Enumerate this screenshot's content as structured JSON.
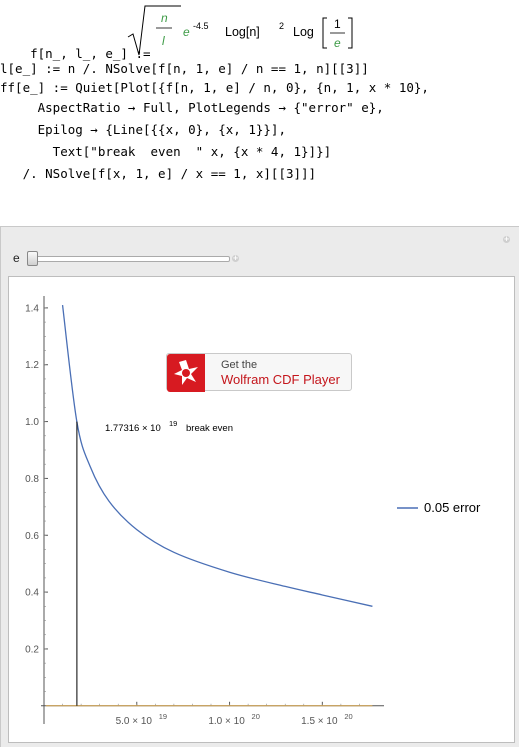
{
  "notebook": {
    "line1": {
      "lhs": "f[n_, l_, e_] := ",
      "sqrt_num": "n",
      "sqrt_den": "l",
      "exp_base": "e",
      "exp_pow": "-4.5",
      "log1": "Log[n]",
      "log1_pow": "2",
      "log2_head": "Log",
      "frac_num": "1",
      "frac_den": "e"
    },
    "line2": "l[e_] := n /. NSolve[f[n, 1, e] / n == 1, n][[3]]",
    "line3": "ff[e_] := Quiet[Plot[{f[n, 1, e] / n, 0}, {n, 1, x * 10},",
    "line4": "     AspectRatio → Full, PlotLegends → {\"error\" e},",
    "line5": "     Epilog → {Line[{{x, 0}, {x, 1}}],",
    "line6": "       Text[\"break  even  \" x, {x * 4, 1}]}]",
    "line7": "   /. NSolve[f[x, 1, e] / x == 1, x][[3]]]"
  },
  "manipulate": {
    "slider_label": "e",
    "slider_value_fraction": 0.0
  },
  "cdf_badge": {
    "line1": "Get the",
    "line2": "Wolfram CDF Player"
  },
  "chart_data": {
    "type": "line",
    "title": "",
    "xlabel": "",
    "ylabel": "",
    "xlim": [
      0,
      1.8e+20
    ],
    "ylim": [
      -0.05,
      1.47
    ],
    "x_ticks": [
      {
        "value": 5e+19,
        "mantissa": "5.0 × 10",
        "exp": "19"
      },
      {
        "value": 1e+20,
        "mantissa": "1.0 × 10",
        "exp": "20"
      },
      {
        "value": 1.5e+20,
        "mantissa": "1.5 × 10",
        "exp": "20"
      }
    ],
    "y_ticks": [
      "0.2",
      "0.4",
      "0.6",
      "0.8",
      "1.0",
      "1.2",
      "1.4"
    ],
    "series": [
      {
        "name": "0.05 error",
        "color": "#4a6fb5",
        "x": [
          1e+19,
          1.77e+19,
          2.5e+19,
          3.5e+19,
          5e+19,
          7e+19,
          1e+20,
          1.3e+20,
          1.5e+20,
          1.77e+20
        ],
        "y": [
          1.41,
          1.0,
          0.84,
          0.72,
          0.62,
          0.54,
          0.47,
          0.42,
          0.39,
          0.35
        ]
      },
      {
        "name": "0",
        "color": "#d2a24e",
        "x": [
          1e+18,
          1.77e+20
        ],
        "y": [
          0,
          0
        ]
      }
    ],
    "annotation": {
      "x": 1.77316e+19,
      "mantissa": "1.77316 × 10",
      "exp": "19",
      "text": "break  even"
    },
    "legend": {
      "label": "0.05 error",
      "position": "right"
    }
  }
}
